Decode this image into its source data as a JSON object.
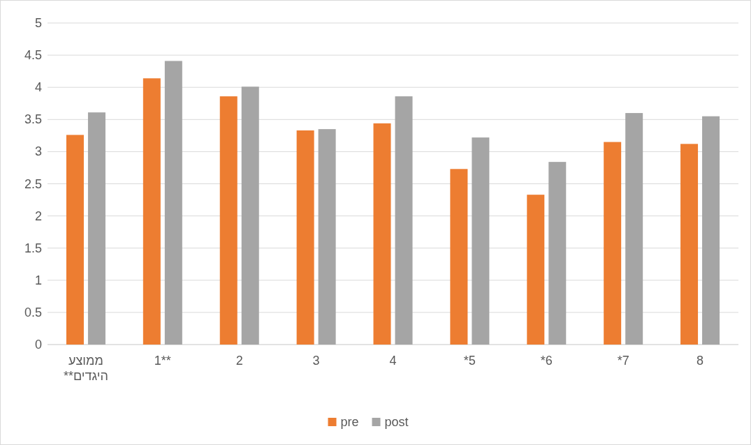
{
  "chart_data": {
    "type": "bar",
    "categories": [
      "ממוצע היגדים**",
      "1**",
      "2",
      "3",
      "4",
      "*5",
      "*6",
      "*7",
      "8"
    ],
    "series": [
      {
        "name": "pre",
        "color": "#ed7d31",
        "values": [
          3.26,
          4.14,
          3.86,
          3.33,
          3.44,
          2.73,
          2.33,
          3.15,
          3.12
        ]
      },
      {
        "name": "post",
        "color": "#a5a5a5",
        "values": [
          3.61,
          4.41,
          4.01,
          3.35,
          3.86,
          3.22,
          2.84,
          3.6,
          3.55
        ]
      }
    ],
    "ylim": [
      0,
      5
    ],
    "yticks": [
      0,
      0.5,
      1,
      1.5,
      2,
      2.5,
      3,
      3.5,
      4,
      4.5,
      5
    ],
    "grid": "y",
    "legend": "bottom"
  }
}
